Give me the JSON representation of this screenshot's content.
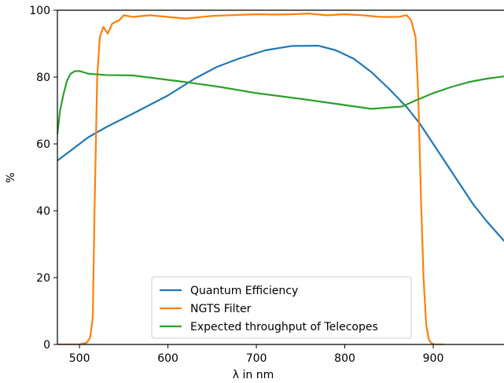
{
  "chart_data": {
    "type": "line",
    "xlabel": "λ in nm",
    "ylabel": "%",
    "xlim": [
      475,
      980
    ],
    "ylim": [
      0,
      100
    ],
    "xticks": [
      500,
      600,
      700,
      800,
      900
    ],
    "yticks": [
      0,
      20,
      40,
      60,
      80,
      100
    ],
    "grid": false,
    "legend_position": "bottom-center",
    "series": [
      {
        "name": "Quantum Efficiency",
        "color": "#1f77b4",
        "x": [
          475,
          490,
          510,
          530,
          560,
          600,
          630,
          655,
          680,
          710,
          740,
          770,
          790,
          810,
          830,
          850,
          870,
          885,
          900,
          915,
          930,
          945,
          960,
          980
        ],
        "y": [
          55,
          58,
          62,
          65,
          69,
          74.5,
          79.5,
          83,
          85.5,
          88,
          89.3,
          89.4,
          88,
          85.5,
          81.5,
          76.5,
          71,
          66,
          60,
          54,
          48,
          42,
          37,
          31
        ]
      },
      {
        "name": "NGTS Filter",
        "color": "#ff7f0e",
        "x": [
          475,
          500,
          508,
          512,
          515,
          517,
          520,
          523,
          527,
          532,
          537,
          545,
          550,
          560,
          580,
          600,
          620,
          650,
          680,
          700,
          720,
          740,
          760,
          780,
          800,
          820,
          840,
          860,
          870,
          875,
          880,
          883,
          886,
          889,
          892,
          895,
          898,
          902,
          910
        ],
        "y": [
          0,
          0,
          0.5,
          2,
          8,
          40,
          80,
          92,
          95,
          93,
          96,
          97,
          98.5,
          98,
          98.5,
          98,
          97.5,
          98.3,
          98.6,
          98.8,
          98.7,
          98.8,
          99,
          98.5,
          98.8,
          98.5,
          98,
          98,
          98.5,
          97,
          92,
          75,
          45,
          20,
          6,
          1.5,
          0.3,
          0,
          0
        ]
      },
      {
        "name": "Expected throughput of Telecopes",
        "color": "#2ca02c",
        "x": [
          475,
          478,
          482,
          486,
          490,
          495,
          500,
          510,
          530,
          560,
          590,
          620,
          660,
          700,
          750,
          790,
          830,
          865,
          880,
          900,
          920,
          940,
          960,
          980
        ],
        "y": [
          63,
          70,
          75,
          79,
          81,
          81.8,
          81.8,
          81,
          80.6,
          80.5,
          79.5,
          78.5,
          77,
          75.2,
          73.5,
          72,
          70.5,
          71.2,
          73,
          75.2,
          77,
          78.5,
          79.5,
          80.2
        ]
      }
    ]
  }
}
